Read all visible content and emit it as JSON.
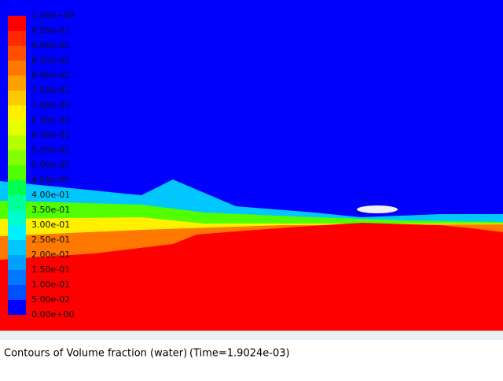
{
  "legend": {
    "labels": [
      "1.00e+00",
      "9.50e-01",
      "9.00e-01",
      "8.50e-01",
      "8.00e-01",
      "7.50e-01",
      "7.00e-01",
      "6.50e-01",
      "6.00e-01",
      "5.50e-01",
      "5.00e-01",
      "4.50e-01",
      "4.00e-01",
      "3.50e-01",
      "3.00e-01",
      "2.50e-01",
      "2.00e-01",
      "1.50e-01",
      "1.00e-01",
      "5.00e-02",
      "0.00e+00"
    ],
    "colors": [
      "#ff0000",
      "#ff2800",
      "#ff5000",
      "#ff7800",
      "#ffa000",
      "#ffc800",
      "#fff000",
      "#e6ff00",
      "#b4ff00",
      "#82ff00",
      "#50ff00",
      "#00ff50",
      "#00ff96",
      "#00ffc8",
      "#00f0ff",
      "#00c8ff",
      "#00a0ff",
      "#0078ff",
      "#0050ff",
      "#0000ff"
    ]
  },
  "caption": {
    "title": "Contours of Volume fraction (water)",
    "time": "(Time=1.9024e-03)"
  }
}
